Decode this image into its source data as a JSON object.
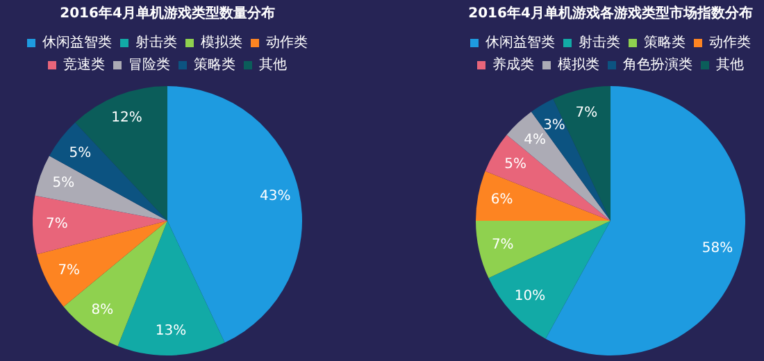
{
  "chart_data": [
    {
      "type": "pie",
      "title": "2016年4月单机游戏类型数量分布",
      "legend": "top",
      "categories": [
        "休闲益智类",
        "射击类",
        "模拟类",
        "动作类",
        "竞速类",
        "冒险类",
        "策略类",
        "其他"
      ],
      "values": [
        43,
        13,
        8,
        7,
        7,
        5,
        5,
        12
      ],
      "colors": [
        "#1e9be0",
        "#12aaa6",
        "#8fd14f",
        "#fd8422",
        "#e8657a",
        "#acabb5",
        "#0c5381",
        "#0b5d5a"
      ],
      "value_labels": [
        "43%",
        "13%",
        "8%",
        "7%",
        "7%",
        "5%",
        "5%",
        "12%"
      ]
    },
    {
      "type": "pie",
      "title": "2016年4月单机游戏各游戏类型市场指数分布",
      "legend": "top",
      "categories": [
        "休闲益智类",
        "射击类",
        "策略类",
        "动作类",
        "养成类",
        "模拟类",
        "角色扮演类",
        "其他"
      ],
      "values": [
        58,
        10,
        7,
        6,
        5,
        4,
        3,
        7
      ],
      "colors": [
        "#1e9be0",
        "#12aaa6",
        "#8fd14f",
        "#fd8422",
        "#e8657a",
        "#acabb5",
        "#0c5381",
        "#0b5d5a"
      ],
      "value_labels": [
        "58%",
        "10%",
        "7%",
        "6%",
        "5%",
        "4%",
        "3%",
        "7%"
      ]
    }
  ]
}
